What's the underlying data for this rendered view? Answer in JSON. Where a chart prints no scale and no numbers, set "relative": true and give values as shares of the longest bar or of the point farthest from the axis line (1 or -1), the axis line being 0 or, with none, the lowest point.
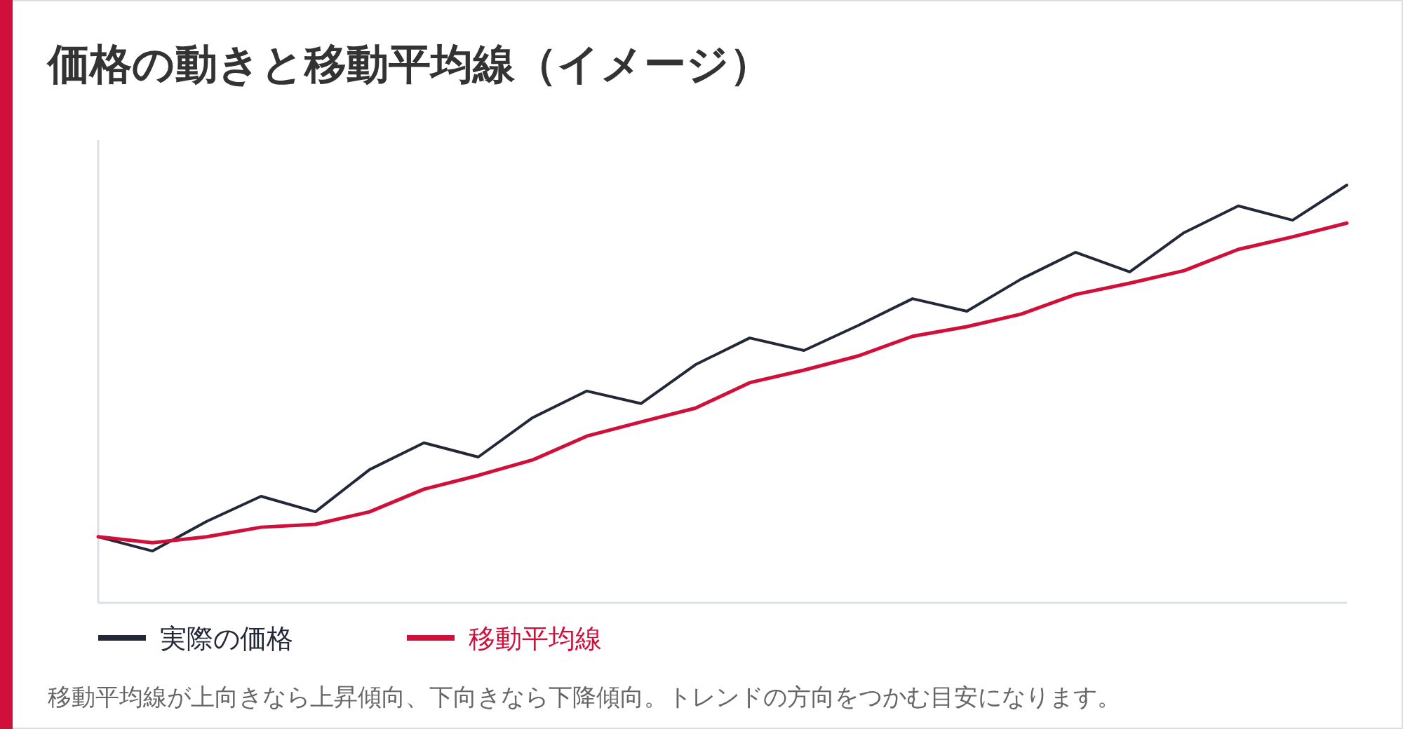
{
  "chart_data": {
    "type": "line",
    "title": "価格の動きと移動平均線（イメージ）",
    "relative": true,
    "categories": [
      null,
      null,
      null,
      null,
      null,
      null,
      null,
      null,
      null,
      null,
      null,
      null,
      null,
      null,
      null,
      null,
      null,
      null,
      null,
      null,
      null,
      null,
      null,
      null
    ],
    "series": [
      {
        "name": "実際の価格",
        "color": "#222838",
        "values": [
          0.158,
          0.124,
          0.195,
          0.255,
          0.218,
          0.319,
          0.383,
          0.349,
          0.443,
          0.507,
          0.477,
          0.57,
          0.634,
          0.604,
          0.664,
          0.728,
          0.698,
          0.775,
          0.839,
          0.792,
          0.886,
          0.95,
          0.916,
          1
        ]
      },
      {
        "name": "移動平均線",
        "color": "#d0103a",
        "values": [
          0.158,
          0.144,
          0.158,
          0.181,
          0.188,
          0.218,
          0.272,
          0.305,
          0.342,
          0.399,
          0.433,
          0.466,
          0.527,
          0.557,
          0.591,
          0.638,
          0.661,
          0.691,
          0.738,
          0.765,
          0.795,
          0.846,
          0.876,
          0.909
        ]
      }
    ],
    "legend": "bottom left",
    "grid": false,
    "marker": "none",
    "line_style": "solid",
    "annotations": [
      "移動平均線が上向きなら上昇傾向、下向きなら下降傾向。トレンドの方向をつかむ目安になります。"
    ]
  }
}
